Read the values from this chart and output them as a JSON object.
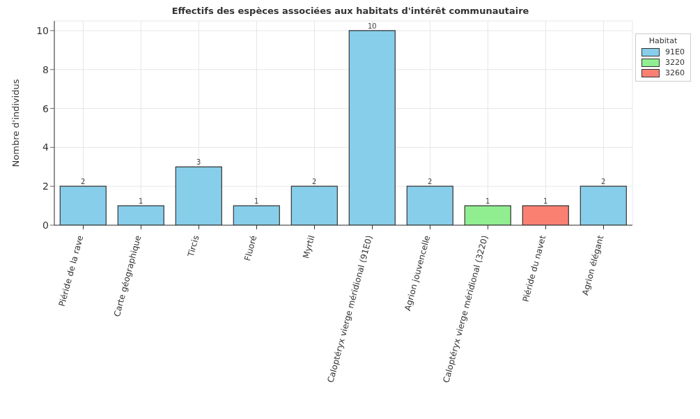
{
  "chart_data": {
    "type": "bar",
    "title": "Effectifs des espèces associées aux habitats d'intérêt communautaire",
    "ylabel": "Nombre d'individus",
    "legend_title": "Habitat",
    "categories": [
      "Piéride de la rave",
      "Carte géographique",
      "Tircis",
      "Fluoré",
      "Myrtil",
      "Caloptéryx vierge méridional (91E0)",
      "Agrion jouvencelle",
      "Caloptéryx vierge méridional (3220)",
      "Piéride du navet",
      "Agrion élégant"
    ],
    "series": [
      {
        "name": "91E0",
        "color": "#87ceeb",
        "values": [
          2,
          1,
          3,
          1,
          2,
          10,
          2,
          null,
          null,
          2
        ]
      },
      {
        "name": "3220",
        "color": "#90ee90",
        "values": [
          null,
          null,
          null,
          null,
          null,
          null,
          null,
          1,
          null,
          null
        ]
      },
      {
        "name": "3260",
        "color": "#fa8072",
        "values": [
          null,
          null,
          null,
          null,
          null,
          null,
          null,
          null,
          1,
          null
        ]
      }
    ],
    "stacked": true,
    "ylim": [
      0,
      10.5
    ],
    "yticks": [
      0,
      2,
      4,
      6,
      8,
      10
    ],
    "grid": true,
    "legend": "top right",
    "data_labels": true
  }
}
